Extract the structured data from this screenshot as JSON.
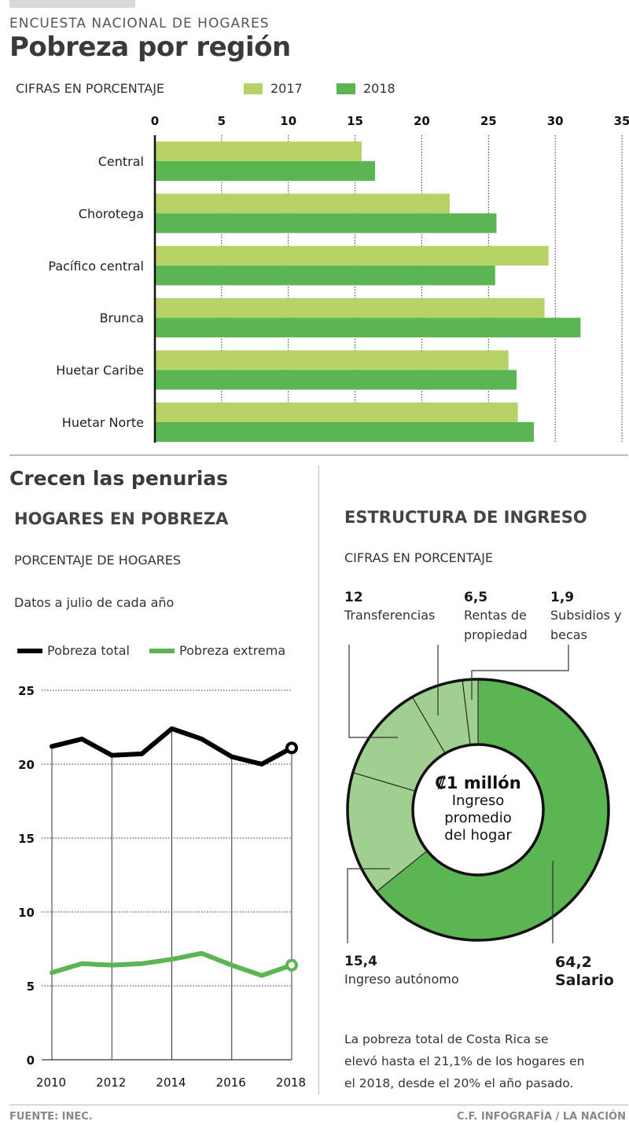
{
  "header": {
    "kicker": "ENCUESTA NACIONAL DE HOGARES",
    "title": "Pobreza por región",
    "subtitle": "CIFRAS EN PORCENTAJE"
  },
  "colors": {
    "light_green": "#b5d366",
    "green": "#5bb553",
    "pie_light": "#a0cf8f",
    "ink": "#000000"
  },
  "section2": {
    "title": "Crecen las penurias",
    "left_heading": "HOGARES EN POBREZA",
    "left_sub": "PORCENTAJE DE HOGARES",
    "left_note": "Datos a julio de cada año",
    "right_heading": "ESTRUCTURA DE INGRESO",
    "right_sub": "CIFRAS EN PORCENTAJE",
    "center_value": "₡1 millón",
    "center_line1": "Ingreso",
    "center_line2": "promedio",
    "center_line3": "del hogar",
    "note_line1": "La pobreza total de Costa Rica se",
    "note_line2": "elevó hasta el 21,1% de los hogares en",
    "note_line3": "el 2018, desde el 20% el año pasado."
  },
  "footer": {
    "source": "FUENTE: INEC.",
    "credit": "C.F. INFOGRAFÍA / LA NACIÓN"
  },
  "chart_data": [
    {
      "type": "bar",
      "orientation": "horizontal",
      "title": "Pobreza por región",
      "subtitle": "CIFRAS EN PORCENTAJE",
      "categories": [
        "Central",
        "Chorotega",
        "Pacífico central",
        "Brunca",
        "Huetar Caribe",
        "Huetar Norte"
      ],
      "series": [
        {
          "name": "2017",
          "values": [
            15.5,
            22.1,
            29.5,
            29.2,
            26.5,
            27.2
          ]
        },
        {
          "name": "2018",
          "values": [
            16.5,
            25.6,
            25.5,
            31.9,
            27.1,
            28.4
          ]
        }
      ],
      "xlim": [
        0,
        35
      ],
      "xticks": [
        "0",
        "5",
        "10",
        "15",
        "20",
        "25",
        "30",
        "35"
      ],
      "grid": true,
      "legend": "top"
    },
    {
      "type": "line",
      "title": "HOGARES EN POBREZA",
      "ylabel": "PORCENTAJE DE HOGARES",
      "x": [
        2010,
        2011,
        2012,
        2013,
        2014,
        2015,
        2016,
        2017,
        2018
      ],
      "xticks": [
        "2010",
        "2012",
        "2014",
        "2016",
        "2018"
      ],
      "yticks": [
        "0",
        "5",
        "10",
        "15",
        "20",
        "25"
      ],
      "ylim": [
        0,
        25
      ],
      "series": [
        {
          "name": "Pobreza total",
          "values": [
            21.2,
            21.7,
            20.6,
            20.7,
            22.4,
            21.7,
            20.5,
            20.0,
            21.1
          ]
        },
        {
          "name": "Pobreza extrema",
          "values": [
            5.9,
            6.5,
            6.4,
            6.5,
            6.8,
            7.2,
            6.4,
            5.7,
            6.4
          ]
        }
      ],
      "legend": "top"
    },
    {
      "type": "pie",
      "title": "ESTRUCTURA DE INGRESO",
      "subtitle": "CIFRAS EN PORCENTAJE",
      "slices": [
        {
          "label": "Salario",
          "value": 64.2,
          "value_text": "64,2"
        },
        {
          "label": "Ingreso autónomo",
          "value": 15.4,
          "value_text": "15,4"
        },
        {
          "label": "Transferencias",
          "value": 12,
          "value_text": "12"
        },
        {
          "label": "Rentas de propiedad",
          "value": 6.5,
          "value_text": "6,5"
        },
        {
          "label": "Subsidios y becas",
          "value": 1.9,
          "value_text": "1,9"
        }
      ]
    }
  ]
}
